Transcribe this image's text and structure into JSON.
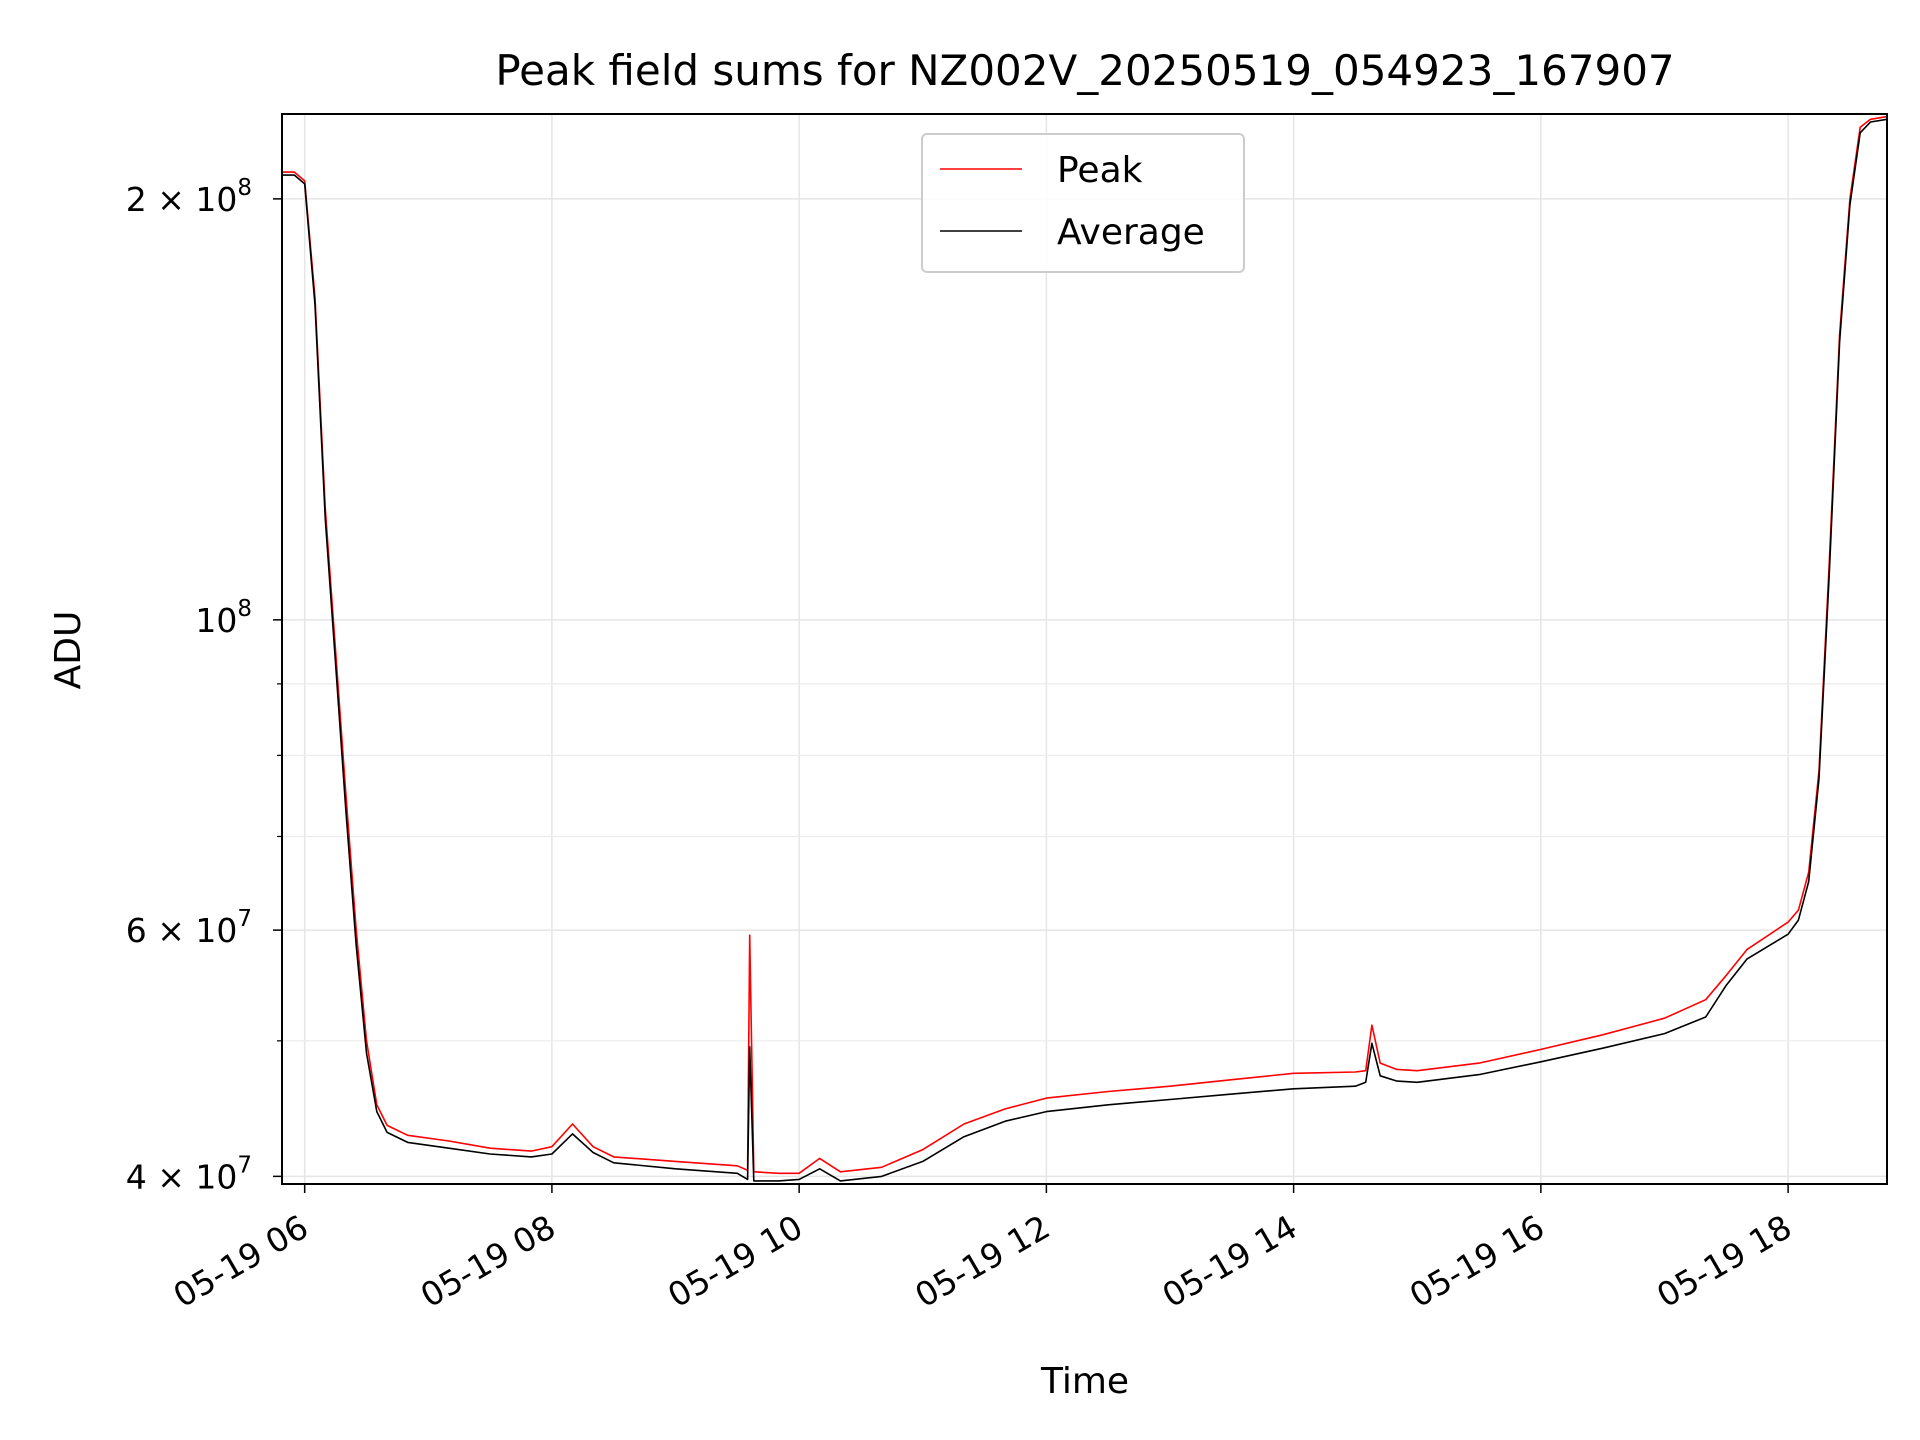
{
  "chart_data": {
    "type": "line",
    "title": "Peak field sums for NZ002V_20250519_054923_167907",
    "xlabel": "Time",
    "ylabel": "ADU",
    "yscale": "log",
    "xlim": [
      "2025-05-19 05:49",
      "2025-05-19 18:48"
    ],
    "ylim": [
      39500000,
      230000000
    ],
    "grid": true,
    "legend_position": "upper center",
    "x_ticks": [
      {
        "value": "2025-05-19 06:00",
        "label": "05-19 06"
      },
      {
        "value": "2025-05-19 08:00",
        "label": "05-19 08"
      },
      {
        "value": "2025-05-19 10:00",
        "label": "05-19 10"
      },
      {
        "value": "2025-05-19 12:00",
        "label": "05-19 12"
      },
      {
        "value": "2025-05-19 14:00",
        "label": "05-19 14"
      },
      {
        "value": "2025-05-19 16:00",
        "label": "05-19 16"
      },
      {
        "value": "2025-05-19 18:00",
        "label": "05-19 18"
      }
    ],
    "y_ticks_major": [
      {
        "value": 40000000,
        "base": "4 × 10",
        "exp": "7"
      },
      {
        "value": 60000000,
        "base": "6 × 10",
        "exp": "7"
      },
      {
        "value": 100000000,
        "base": "10",
        "exp": "8"
      },
      {
        "value": 200000000,
        "base": "2 × 10",
        "exp": "8"
      }
    ],
    "y_ticks_minor": [
      50000000,
      70000000,
      80000000,
      90000000
    ],
    "series": [
      {
        "name": "Peak",
        "color": "#ff0000",
        "x": [
          "2025-05-19 05:49",
          "2025-05-19 05:55",
          "2025-05-19 06:00",
          "2025-05-19 06:05",
          "2025-05-19 06:10",
          "2025-05-19 06:15",
          "2025-05-19 06:20",
          "2025-05-19 06:25",
          "2025-05-19 06:30",
          "2025-05-19 06:35",
          "2025-05-19 06:40",
          "2025-05-19 06:50",
          "2025-05-19 07:10",
          "2025-05-19 07:30",
          "2025-05-19 07:50",
          "2025-05-19 08:00",
          "2025-05-19 08:10",
          "2025-05-19 08:20",
          "2025-05-19 08:30",
          "2025-05-19 09:00",
          "2025-05-19 09:30",
          "2025-05-19 09:35",
          "2025-05-19 09:36",
          "2025-05-19 09:38",
          "2025-05-19 09:50",
          "2025-05-19 10:00",
          "2025-05-19 10:10",
          "2025-05-19 10:20",
          "2025-05-19 10:40",
          "2025-05-19 11:00",
          "2025-05-19 11:20",
          "2025-05-19 11:40",
          "2025-05-19 12:00",
          "2025-05-19 12:30",
          "2025-05-19 13:00",
          "2025-05-19 13:30",
          "2025-05-19 14:00",
          "2025-05-19 14:30",
          "2025-05-19 14:35",
          "2025-05-19 14:38",
          "2025-05-19 14:42",
          "2025-05-19 14:50",
          "2025-05-19 15:00",
          "2025-05-19 15:30",
          "2025-05-19 16:00",
          "2025-05-19 16:30",
          "2025-05-19 17:00",
          "2025-05-19 17:20",
          "2025-05-19 17:30",
          "2025-05-19 17:40",
          "2025-05-19 18:00",
          "2025-05-19 18:05",
          "2025-05-19 18:10",
          "2025-05-19 18:15",
          "2025-05-19 18:20",
          "2025-05-19 18:25",
          "2025-05-19 18:30",
          "2025-05-19 18:35",
          "2025-05-19 18:40",
          "2025-05-19 18:48"
        ],
        "y": [
          209000000,
          209000000,
          206000000,
          170000000,
          120000000,
          95000000,
          75000000,
          60000000,
          50000000,
          45000000,
          43500000,
          42800000,
          42400000,
          41900000,
          41700000,
          42000000,
          43600000,
          42000000,
          41300000,
          41000000,
          40700000,
          40400000,
          59500000,
          40300000,
          40200000,
          40200000,
          41200000,
          40300000,
          40600000,
          41800000,
          43600000,
          44700000,
          45500000,
          46000000,
          46400000,
          46900000,
          47400000,
          47500000,
          47600000,
          51300000,
          48200000,
          47700000,
          47600000,
          48200000,
          49300000,
          50500000,
          51900000,
          53500000,
          55700000,
          58100000,
          60800000,
          62000000,
          66000000,
          78000000,
          110000000,
          160000000,
          200000000,
          225000000,
          228000000,
          229000000
        ]
      },
      {
        "name": "Average",
        "color": "#000000",
        "x": [
          "2025-05-19 05:49",
          "2025-05-19 05:55",
          "2025-05-19 06:00",
          "2025-05-19 06:05",
          "2025-05-19 06:10",
          "2025-05-19 06:15",
          "2025-05-19 06:20",
          "2025-05-19 06:25",
          "2025-05-19 06:30",
          "2025-05-19 06:35",
          "2025-05-19 06:40",
          "2025-05-19 06:50",
          "2025-05-19 07:10",
          "2025-05-19 07:30",
          "2025-05-19 07:50",
          "2025-05-19 08:00",
          "2025-05-19 08:10",
          "2025-05-19 08:20",
          "2025-05-19 08:30",
          "2025-05-19 09:00",
          "2025-05-19 09:30",
          "2025-05-19 09:35",
          "2025-05-19 09:36",
          "2025-05-19 09:38",
          "2025-05-19 09:50",
          "2025-05-19 10:00",
          "2025-05-19 10:10",
          "2025-05-19 10:20",
          "2025-05-19 10:40",
          "2025-05-19 11:00",
          "2025-05-19 11:20",
          "2025-05-19 11:40",
          "2025-05-19 12:00",
          "2025-05-19 12:30",
          "2025-05-19 13:00",
          "2025-05-19 13:30",
          "2025-05-19 14:00",
          "2025-05-19 14:30",
          "2025-05-19 14:35",
          "2025-05-19 14:38",
          "2025-05-19 14:42",
          "2025-05-19 14:50",
          "2025-05-19 15:00",
          "2025-05-19 15:30",
          "2025-05-19 16:00",
          "2025-05-19 16:30",
          "2025-05-19 17:00",
          "2025-05-19 17:20",
          "2025-05-19 17:30",
          "2025-05-19 17:40",
          "2025-05-19 18:00",
          "2025-05-19 18:05",
          "2025-05-19 18:10",
          "2025-05-19 18:15",
          "2025-05-19 18:20",
          "2025-05-19 18:25",
          "2025-05-19 18:30",
          "2025-05-19 18:35",
          "2025-05-19 18:40",
          "2025-05-19 18:48"
        ],
        "y": [
          208000000,
          208000000,
          205000000,
          168000000,
          118000000,
          93000000,
          73000000,
          58500000,
          49000000,
          44500000,
          43000000,
          42300000,
          41900000,
          41500000,
          41300000,
          41500000,
          42900000,
          41600000,
          40900000,
          40500000,
          40200000,
          39800000,
          49500000,
          39700000,
          39700000,
          39800000,
          40500000,
          39700000,
          40000000,
          41000000,
          42700000,
          43800000,
          44500000,
          45000000,
          45400000,
          45800000,
          46200000,
          46400000,
          46700000,
          49800000,
          47200000,
          46800000,
          46700000,
          47300000,
          48300000,
          49400000,
          50600000,
          52000000,
          54800000,
          57200000,
          59600000,
          61000000,
          65000000,
          77000000,
          108000000,
          158000000,
          198000000,
          223000000,
          227000000,
          228000000
        ]
      }
    ]
  }
}
